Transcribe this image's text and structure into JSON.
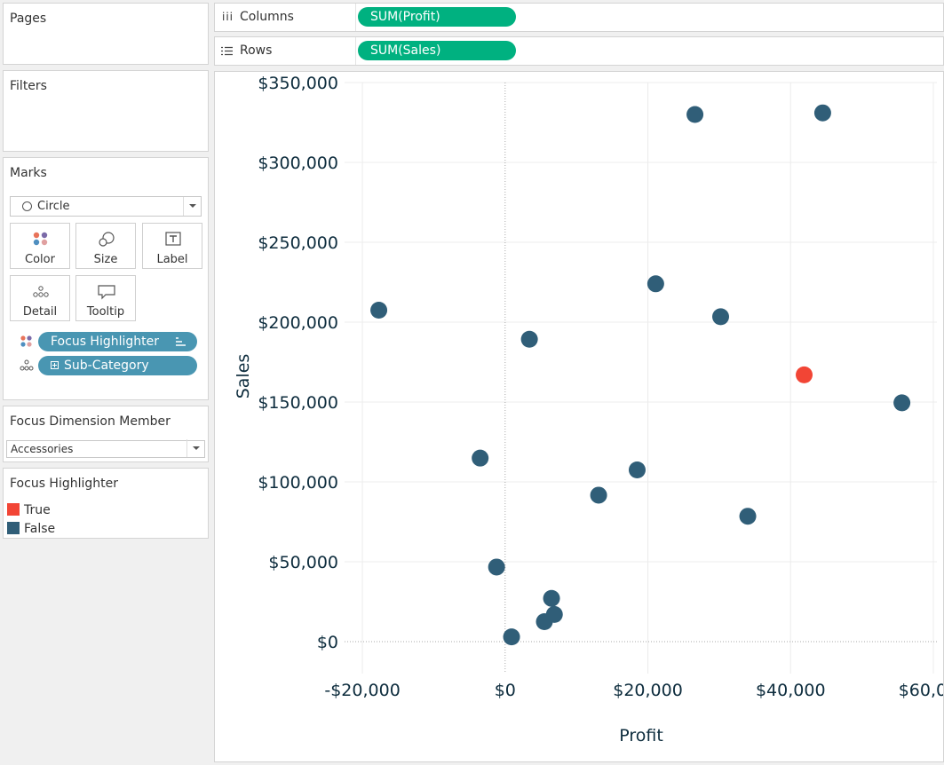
{
  "pages": {
    "title": "Pages"
  },
  "filters": {
    "title": "Filters"
  },
  "marks": {
    "title": "Marks",
    "mark_type": "Circle",
    "buttons": {
      "color": "Color",
      "size": "Size",
      "label": "Label",
      "detail": "Detail",
      "tooltip": "Tooltip"
    },
    "pills": {
      "focus": "Focus Highlighter",
      "subcat": "Sub-Category"
    }
  },
  "parameter": {
    "title": "Focus Dimension Member",
    "value": "Accessories"
  },
  "legend": {
    "title": "Focus Highlighter",
    "items": [
      {
        "label": "True",
        "color": "#f24535"
      },
      {
        "label": "False",
        "color": "#305e78"
      }
    ]
  },
  "shelves": {
    "columns": {
      "label": "Columns",
      "pill": "SUM(Profit)"
    },
    "rows": {
      "label": "Rows",
      "pill": "SUM(Sales)"
    }
  },
  "chart_data": {
    "type": "scatter",
    "xlabel": "Profit",
    "ylabel": "Sales",
    "xlim": [
      -22500,
      60500
    ],
    "ylim": [
      -20000,
      350000
    ],
    "x_ticks": [
      -20000,
      0,
      20000,
      40000,
      60000
    ],
    "x_tick_labels": [
      "-$20,000",
      "$0",
      "$20,000",
      "$40,000",
      "$60,000"
    ],
    "y_ticks": [
      0,
      50000,
      100000,
      150000,
      200000,
      250000,
      300000,
      350000
    ],
    "y_tick_labels": [
      "$0",
      "$50,000",
      "$100,000",
      "$150,000",
      "$200,000",
      "$250,000",
      "$300,000",
      "$350,000"
    ],
    "colors": {
      "True": "#f24535",
      "False": "#305e78"
    },
    "points": [
      {
        "x": 26600,
        "y": 330000,
        "focus": "False"
      },
      {
        "x": 44500,
        "y": 331000,
        "focus": "False"
      },
      {
        "x": 21100,
        "y": 224000,
        "focus": "False"
      },
      {
        "x": -17700,
        "y": 207500,
        "focus": "False"
      },
      {
        "x": 30200,
        "y": 203400,
        "focus": "False"
      },
      {
        "x": 3400,
        "y": 189300,
        "focus": "False"
      },
      {
        "x": 41900,
        "y": 167000,
        "focus": "True"
      },
      {
        "x": 55600,
        "y": 149500,
        "focus": "False"
      },
      {
        "x": -3500,
        "y": 114900,
        "focus": "False"
      },
      {
        "x": 18500,
        "y": 107500,
        "focus": "False"
      },
      {
        "x": 13100,
        "y": 91700,
        "focus": "False"
      },
      {
        "x": 34000,
        "y": 78500,
        "focus": "False"
      },
      {
        "x": -1200,
        "y": 46700,
        "focus": "False"
      },
      {
        "x": 6500,
        "y": 27100,
        "focus": "False"
      },
      {
        "x": 6900,
        "y": 17000,
        "focus": "False"
      },
      {
        "x": 5500,
        "y": 12500,
        "focus": "False"
      },
      {
        "x": 900,
        "y": 3000,
        "focus": "False"
      }
    ]
  }
}
